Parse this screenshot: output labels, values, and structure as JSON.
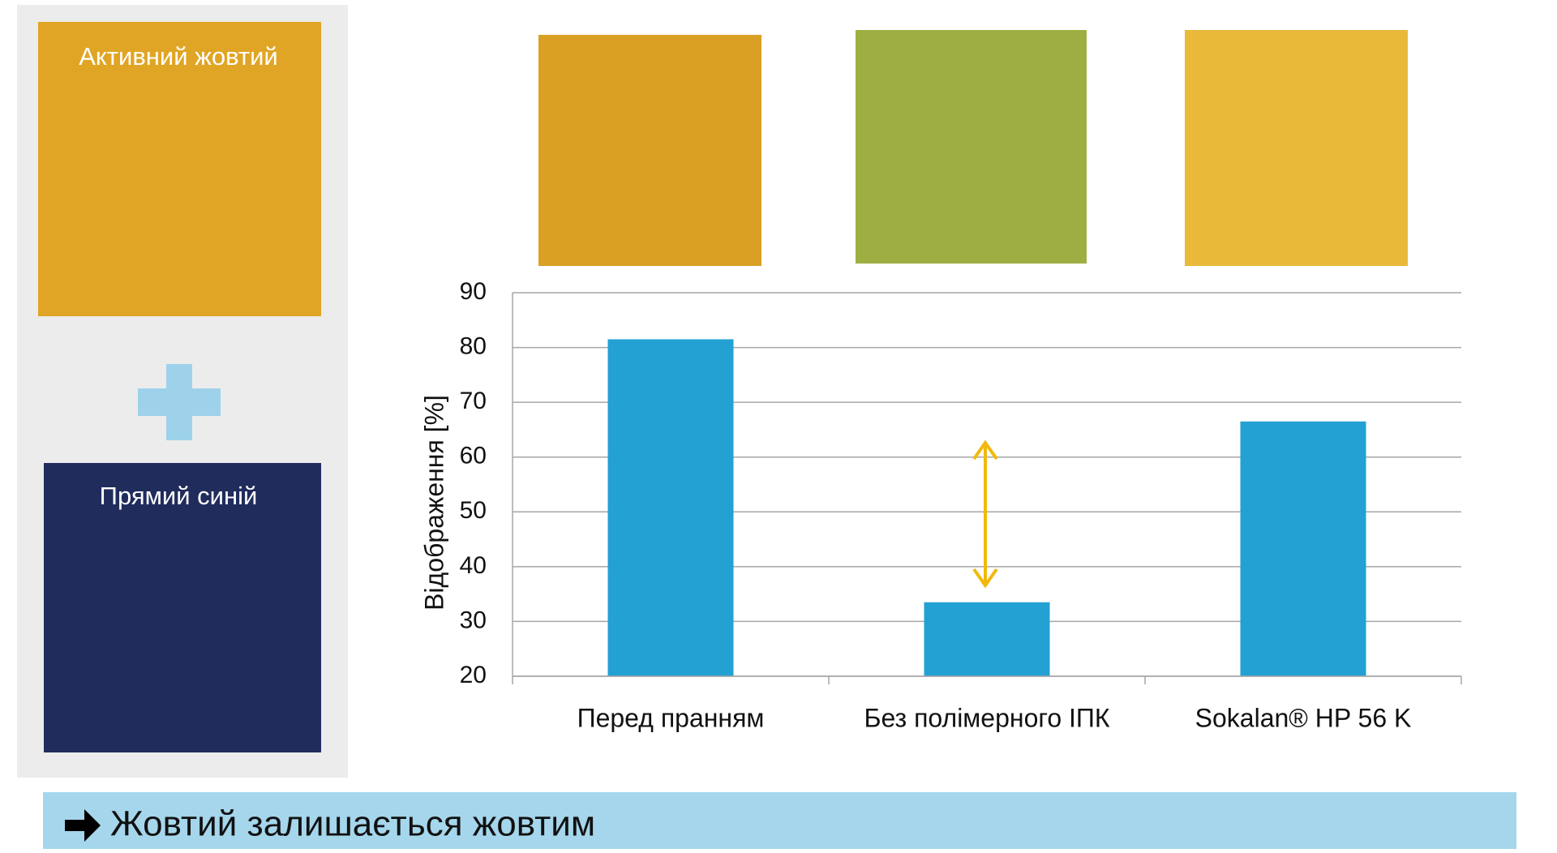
{
  "panel": {
    "swatch_1": "Активний жовтий",
    "swatch_2": "Прямий синій"
  },
  "chart_data": {
    "type": "bar",
    "y_label": "Відображення [%]",
    "categories": [
      "Перед пранням",
      "Без полімерного ІПК",
      "Sokalan® HP 56 K"
    ],
    "values": [
      81.5,
      33.5,
      66.5
    ],
    "color": "#23a1d3",
    "ylim": [
      20,
      90
    ],
    "yticks": [
      20,
      30,
      40,
      50,
      60,
      70,
      80,
      90
    ],
    "grid": true
  },
  "conclusion": "Жовтий залишається жовтим"
}
